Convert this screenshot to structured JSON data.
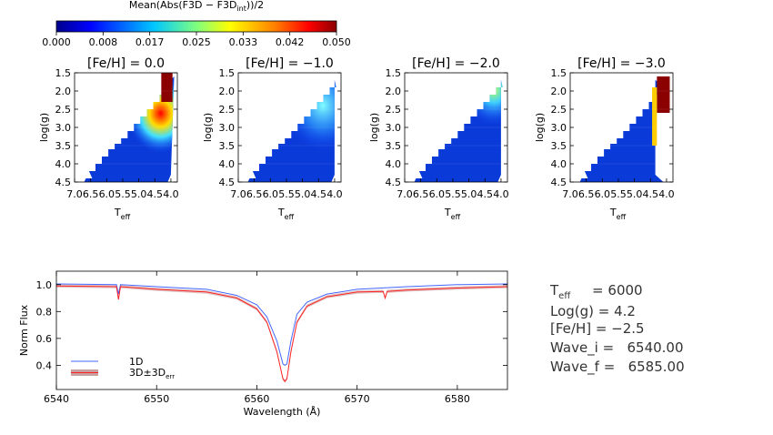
{
  "colorbar": {
    "title": "Mean(Abs(F3D − F3D",
    "title_sub": "int",
    "title_end": "))/2",
    "ticks": [
      "0.000",
      "0.008",
      "0.017",
      "0.025",
      "0.033",
      "0.042",
      "0.050"
    ]
  },
  "chart_data": [
    {
      "type": "heatmap",
      "title": "[Fe/H] =  0.0",
      "xlabel": "T",
      "xlabel_sub": "eff",
      "ylabel": "log(g)",
      "xticks": [
        "7.0",
        "6.5",
        "6.0",
        "5.5",
        "5.0",
        "4.5",
        "4.0"
      ],
      "yticks": [
        "1.5",
        "2.0",
        "2.5",
        "3.0",
        "3.5",
        "4.0",
        "4.5"
      ],
      "xlim": [
        7.0,
        3.8
      ],
      "ylim": [
        4.5,
        1.5
      ],
      "zlim": [
        0.0,
        0.05
      ]
    },
    {
      "type": "heatmap",
      "title": "[Fe/H] = −1.0",
      "xlabel": "T",
      "xlabel_sub": "eff",
      "ylabel": "log(g)",
      "xticks": [
        "7.0",
        "6.5",
        "6.0",
        "5.5",
        "5.0",
        "4.5",
        "4.0"
      ],
      "yticks": [
        "1.5",
        "2.0",
        "2.5",
        "3.0",
        "3.5",
        "4.0",
        "4.5"
      ],
      "xlim": [
        7.0,
        3.8
      ],
      "ylim": [
        4.5,
        1.5
      ],
      "zlim": [
        0.0,
        0.05
      ]
    },
    {
      "type": "heatmap",
      "title": "[Fe/H] = −2.0",
      "xlabel": "T",
      "xlabel_sub": "eff",
      "ylabel": "log(g)",
      "xticks": [
        "7.0",
        "6.5",
        "6.0",
        "5.5",
        "5.0",
        "4.5",
        "4.0"
      ],
      "yticks": [
        "1.5",
        "2.0",
        "2.5",
        "3.0",
        "3.5",
        "4.0",
        "4.5"
      ],
      "xlim": [
        7.0,
        3.8
      ],
      "ylim": [
        4.5,
        1.5
      ],
      "zlim": [
        0.0,
        0.05
      ]
    },
    {
      "type": "heatmap",
      "title": "[Fe/H] = −3.0",
      "xlabel": "T",
      "xlabel_sub": "eff",
      "ylabel": "log(g)",
      "xticks": [
        "7.0",
        "6.5",
        "6.0",
        "5.5",
        "5.0",
        "4.5",
        "4.0"
      ],
      "yticks": [
        "1.5",
        "2.0",
        "2.5",
        "3.0",
        "3.5",
        "4.0",
        "4.5"
      ],
      "xlim": [
        7.0,
        3.8
      ],
      "ylim": [
        4.5,
        1.5
      ],
      "zlim": [
        0.0,
        0.05
      ]
    },
    {
      "type": "line",
      "xlabel": "Wavelength (Å)",
      "ylabel": "Norm Flux",
      "xlim": [
        6540,
        6585
      ],
      "ylim": [
        0.22,
        1.1
      ],
      "xticks": [
        "6540",
        "6550",
        "6560",
        "6570",
        "6580"
      ],
      "yticks": [
        "0.4",
        "0.6",
        "0.8",
        "1.0"
      ],
      "series": [
        {
          "name": "1D",
          "color": "#4466ff",
          "x": [
            6540,
            6546,
            6546.2,
            6546.4,
            6550,
            6555,
            6558,
            6560,
            6561,
            6562,
            6562.6,
            6562.8,
            6563.0,
            6563.4,
            6564,
            6565,
            6567,
            6570,
            6575,
            6580,
            6585
          ],
          "y": [
            1.005,
            1.0,
            0.93,
            1.0,
            0.985,
            0.965,
            0.92,
            0.85,
            0.76,
            0.58,
            0.41,
            0.4,
            0.41,
            0.58,
            0.78,
            0.87,
            0.93,
            0.965,
            0.985,
            1.0,
            1.005
          ]
        },
        {
          "name": "3D±3D",
          "name_sub": "err",
          "color": "#ff2222",
          "x": [
            6540,
            6546,
            6546.2,
            6546.4,
            6550,
            6555,
            6558,
            6560,
            6561,
            6562,
            6562.6,
            6562.8,
            6563.0,
            6563.4,
            6564,
            6565,
            6567,
            6570,
            6572.6,
            6572.8,
            6573,
            6575,
            6580,
            6585
          ],
          "y": [
            0.99,
            0.985,
            0.89,
            0.985,
            0.965,
            0.945,
            0.9,
            0.82,
            0.72,
            0.5,
            0.3,
            0.28,
            0.3,
            0.5,
            0.72,
            0.84,
            0.91,
            0.945,
            0.95,
            0.9,
            0.95,
            0.96,
            0.975,
            0.985
          ]
        }
      ]
    }
  ],
  "info": {
    "teff_label": "T",
    "teff_sub": "eff",
    "teff_value": "     = 6000",
    "logg": "Log(g) = 4.2",
    "feh": "[Fe/H] = −2.5",
    "wave_i": "Wave_i =   6540.00",
    "wave_f": "Wave_f =   6585.00"
  }
}
